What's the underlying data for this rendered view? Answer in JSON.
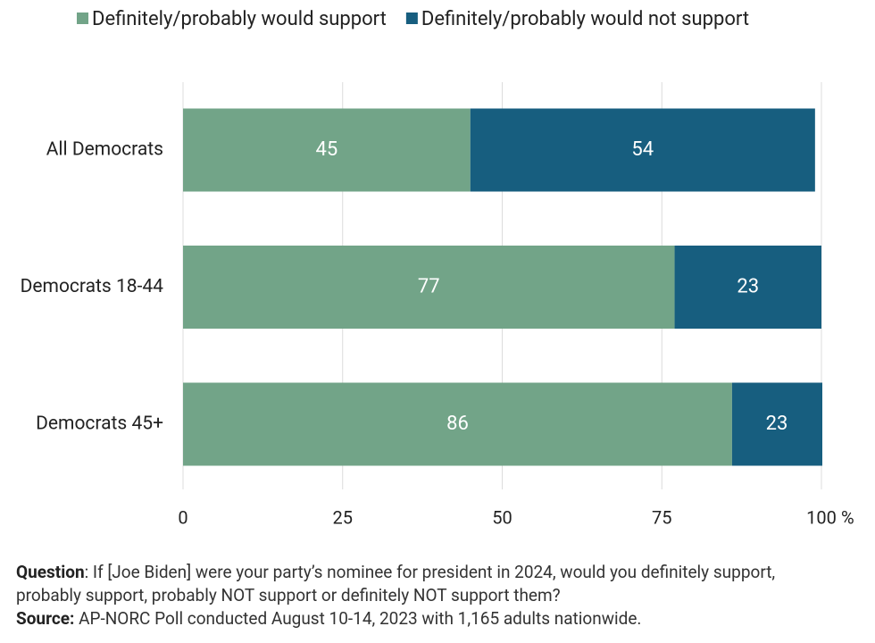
{
  "chart_data": {
    "type": "stacked-barh",
    "categories": [
      "All Democrats",
      "Democrats 18-44",
      "Democrats 45+"
    ],
    "series": [
      {
        "name": "Definitely/probably would support",
        "color": "#72a488",
        "values": [
          45,
          77,
          86
        ]
      },
      {
        "name": "Definitely/probably would not support",
        "color": "#175e7f",
        "values": [
          54,
          23,
          23
        ]
      }
    ],
    "xlim": [
      0,
      100
    ],
    "xticks": [
      0,
      25,
      50,
      75,
      100
    ],
    "x_unit": "%",
    "grid": true,
    "legend": "top",
    "notes": [
      {
        "label": "Question",
        "text": ": If [Joe Biden] were your party’s nominee for president in 2024, would you definitely support, probably support, probably NOT support or definitely NOT support them?"
      },
      {
        "label": "Source:",
        "text": " AP-NORC Poll conducted August 10-14, 2023 with 1,165 adults nationwide."
      }
    ]
  }
}
